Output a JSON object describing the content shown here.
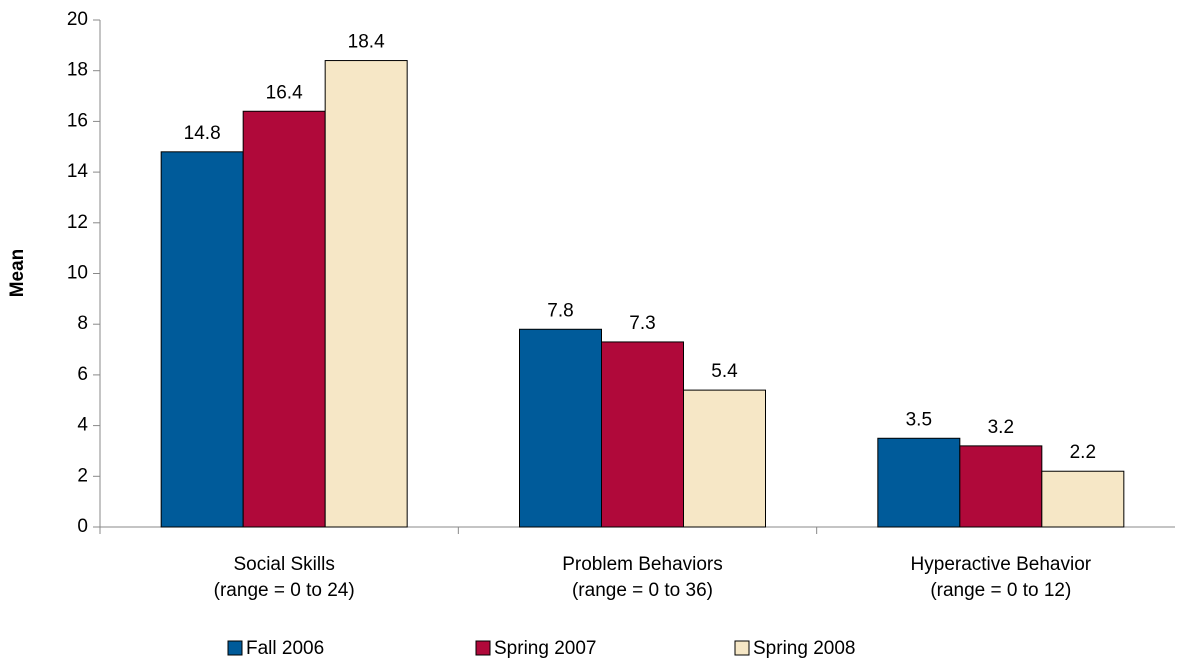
{
  "chart_data": {
    "type": "bar",
    "y_label": "Mean",
    "categories": [
      [
        "Social Skills",
        "(range = 0 to 24)"
      ],
      [
        "Problem Behaviors",
        "(range = 0 to 36)"
      ],
      [
        "Hyperactive Behavior",
        "(range = 0 to 12)"
      ]
    ],
    "series": [
      {
        "name": "Fall 2006",
        "color": "#005b9a",
        "values": [
          14.8,
          7.8,
          3.5
        ]
      },
      {
        "name": "Spring 2007",
        "color": "#b0093a",
        "values": [
          16.4,
          7.3,
          3.2
        ]
      },
      {
        "name": "Spring 2008",
        "color": "#f6e7c6",
        "values": [
          18.4,
          5.4,
          2.2
        ]
      }
    ],
    "ylim": [
      0,
      20
    ],
    "yticks": [
      0,
      2,
      4,
      6,
      8,
      10,
      12,
      14,
      16,
      18,
      20
    ],
    "legend": "bottom"
  }
}
